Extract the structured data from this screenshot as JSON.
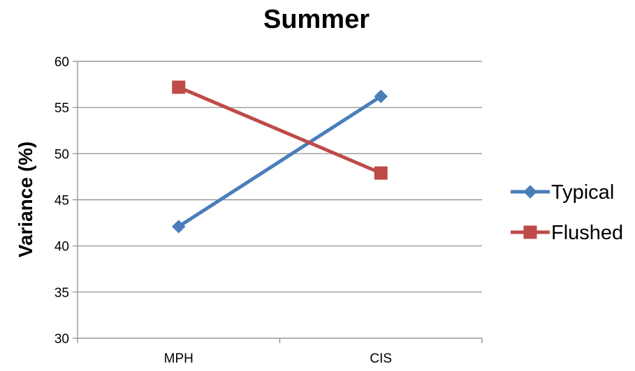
{
  "chart_data": {
    "type": "line",
    "title": "Summer",
    "xlabel": "",
    "ylabel": "Variance (%)",
    "categories": [
      "MPH",
      "CIS"
    ],
    "ylim": [
      30,
      60
    ],
    "yticks": [
      30,
      35,
      40,
      45,
      50,
      55,
      60
    ],
    "grid": true,
    "legend": "right",
    "series": [
      {
        "name": "Typical",
        "values": [
          42.1,
          56.2
        ],
        "color": "#4a7ebb",
        "marker": "diamond"
      },
      {
        "name": "Flushed",
        "values": [
          57.2,
          47.9
        ],
        "color": "#be4b48",
        "marker": "square"
      }
    ]
  }
}
